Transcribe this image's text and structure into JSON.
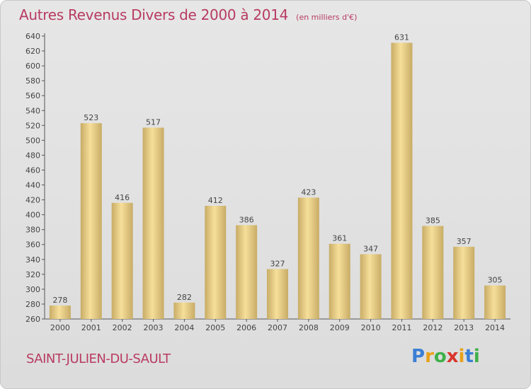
{
  "title": "Autres Revenus Divers de 2000 à 2014",
  "subtitle": "(en milliers d'€)",
  "city": "SAINT-JULIEN-DU-SAULT",
  "logo": {
    "letters": [
      "P",
      "r",
      "o",
      "x",
      "i",
      "t",
      "i"
    ],
    "colors": [
      "#3a7fd5",
      "#e8a21a",
      "#3fb04a",
      "#d9342b",
      "#e8a21a",
      "#3a7fd5",
      "#3fb04a"
    ]
  },
  "colors": {
    "bar_light": "#f6df9a",
    "bar_dark": "#c8ac66",
    "text": "#444444",
    "accent": "#b83b62"
  },
  "chart_data": {
    "type": "bar",
    "categories": [
      "2000",
      "2001",
      "2002",
      "2003",
      "2004",
      "2005",
      "2006",
      "2007",
      "2008",
      "2009",
      "2010",
      "2011",
      "2012",
      "2013",
      "2014"
    ],
    "values": [
      278,
      523,
      416,
      517,
      282,
      412,
      386,
      327,
      423,
      361,
      347,
      631,
      385,
      357,
      305
    ],
    "data_labels": [
      "278",
      "523",
      "416",
      "517",
      "282",
      "412",
      "386",
      "327",
      "423",
      "361",
      "347",
      "631",
      "385",
      "357",
      "305"
    ],
    "ylim": [
      260,
      640
    ],
    "yticks": [
      260,
      280,
      300,
      320,
      340,
      360,
      380,
      400,
      420,
      440,
      460,
      480,
      500,
      520,
      540,
      560,
      580,
      600,
      620,
      640
    ],
    "ytick_labels": [
      "260",
      "280",
      "300",
      "320",
      "340",
      "360",
      "380",
      "400",
      "420",
      "440",
      "460",
      "480",
      "500",
      "520",
      "540",
      "560",
      "580",
      "600",
      "620",
      "640"
    ],
    "grid": false,
    "xlabel": "",
    "ylabel": ""
  }
}
